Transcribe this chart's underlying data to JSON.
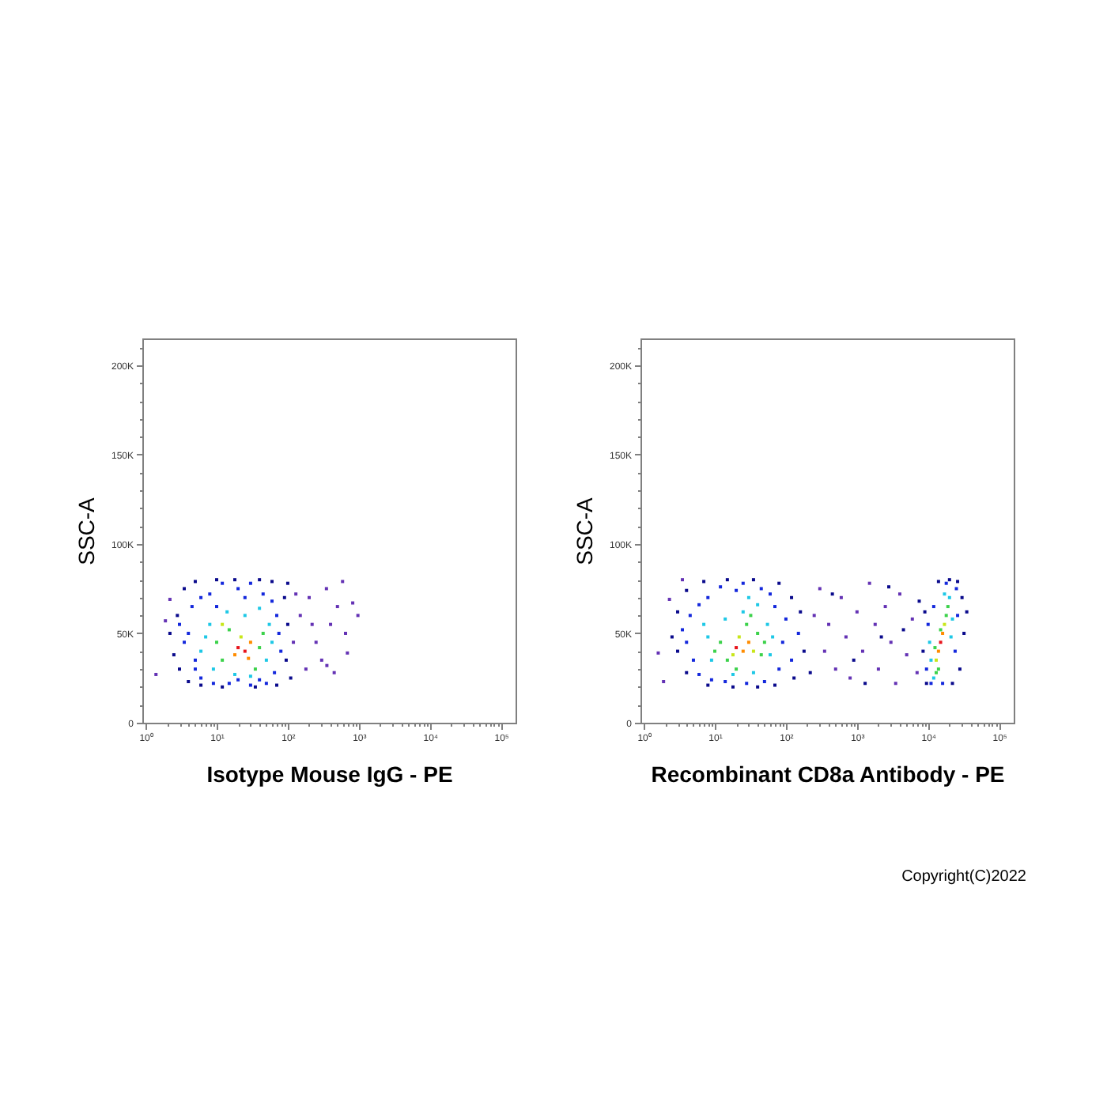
{
  "chart_data": [
    {
      "type": "scatter",
      "xlabel": "Isotype Mouse IgG - PE",
      "ylabel": "SSC-A",
      "log": "x",
      "marker": "square",
      "xlim": [
        0.9,
        160000
      ],
      "ylim": [
        0,
        215000
      ],
      "xticks": [
        {
          "value": 1,
          "label": "10⁰"
        },
        {
          "value": 2,
          "label": null
        },
        {
          "value": 3,
          "label": null
        },
        {
          "value": 4,
          "label": null
        },
        {
          "value": 5,
          "label": null
        },
        {
          "value": 6,
          "label": null
        },
        {
          "value": 7,
          "label": null
        },
        {
          "value": 8,
          "label": null
        },
        {
          "value": 9,
          "label": null
        },
        {
          "value": 10,
          "label": "10¹"
        },
        {
          "value": 20,
          "label": null
        },
        {
          "value": 30,
          "label": null
        },
        {
          "value": 40,
          "label": null
        },
        {
          "value": 50,
          "label": null
        },
        {
          "value": 60,
          "label": null
        },
        {
          "value": 70,
          "label": null
        },
        {
          "value": 80,
          "label": null
        },
        {
          "value": 90,
          "label": null
        },
        {
          "value": 100,
          "label": "10²"
        },
        {
          "value": 200,
          "label": null
        },
        {
          "value": 300,
          "label": null
        },
        {
          "value": 400,
          "label": null
        },
        {
          "value": 500,
          "label": null
        },
        {
          "value": 600,
          "label": null
        },
        {
          "value": 700,
          "label": null
        },
        {
          "value": 800,
          "label": null
        },
        {
          "value": 900,
          "label": null
        },
        {
          "value": 1000,
          "label": "10³"
        },
        {
          "value": 2000,
          "label": null
        },
        {
          "value": 3000,
          "label": null
        },
        {
          "value": 4000,
          "label": null
        },
        {
          "value": 5000,
          "label": null
        },
        {
          "value": 6000,
          "label": null
        },
        {
          "value": 7000,
          "label": null
        },
        {
          "value": 8000,
          "label": null
        },
        {
          "value": 9000,
          "label": null
        },
        {
          "value": 10000,
          "label": "10⁴"
        },
        {
          "value": 20000,
          "label": null
        },
        {
          "value": 30000,
          "label": null
        },
        {
          "value": 40000,
          "label": null
        },
        {
          "value": 50000,
          "label": null
        },
        {
          "value": 60000,
          "label": null
        },
        {
          "value": 70000,
          "label": null
        },
        {
          "value": 80000,
          "label": null
        },
        {
          "value": 90000,
          "label": null
        },
        {
          "value": 100000,
          "label": "10⁵"
        }
      ],
      "yticks": [
        0,
        {
          "value": 10000,
          "label": null
        },
        {
          "value": 20000,
          "label": null
        },
        {
          "value": 30000,
          "label": null
        },
        {
          "value": 40000,
          "label": null
        },
        {
          "value": 50000,
          "label": "50K"
        },
        {
          "value": 60000,
          "label": null
        },
        {
          "value": 70000,
          "label": null
        },
        {
          "value": 80000,
          "label": null
        },
        {
          "value": 90000,
          "label": null
        },
        {
          "value": 100000,
          "label": "100K"
        },
        {
          "value": 110000,
          "label": null
        },
        {
          "value": 120000,
          "label": null
        },
        {
          "value": 130000,
          "label": null
        },
        {
          "value": 140000,
          "label": null
        },
        {
          "value": 150000,
          "label": "150K"
        },
        {
          "value": 160000,
          "label": null
        },
        {
          "value": 170000,
          "label": null
        },
        {
          "value": 180000,
          "label": null
        },
        {
          "value": 190000,
          "label": null
        },
        {
          "value": 200000,
          "label": "200K"
        },
        {
          "value": 210000,
          "label": null
        }
      ],
      "series": [
        {
          "color": "#6432b4",
          "x": [
            150,
            200,
            250,
            300,
            400,
            500,
            690,
            355,
            820,
            970,
            590,
            120,
            180,
            350,
            450,
            650,
            1.4,
            1.9,
            2.2,
            130,
            220
          ],
          "values": [
            60000,
            70000,
            45000,
            35000,
            55000,
            65000,
            39000,
            32000,
            67000,
            60000,
            79000,
            45000,
            30000,
            75000,
            28000,
            50000,
            27000,
            57000,
            69000,
            72000,
            55000
          ]
        },
        {
          "color": "#0a0a8c",
          "x": [
            2.5,
            2.8,
            3.5,
            5,
            10,
            18,
            40,
            60,
            90,
            100,
            95,
            70,
            35,
            12,
            6,
            3,
            2.2,
            4,
            100,
            110
          ],
          "values": [
            38000,
            60000,
            75000,
            79000,
            80000,
            80000,
            80000,
            79000,
            70000,
            55000,
            35000,
            21000,
            20000,
            20000,
            21000,
            30000,
            50000,
            23000,
            78000,
            25000
          ]
        },
        {
          "color": "#1428dc",
          "x": [
            4,
            5,
            4.5,
            6,
            8,
            12,
            20,
            30,
            45,
            70,
            80,
            65,
            50,
            30,
            15,
            9,
            5,
            3.5,
            3,
            6,
            25,
            60,
            75,
            40,
            10,
            20
          ],
          "values": [
            50000,
            35000,
            65000,
            25000,
            72000,
            78000,
            75000,
            78000,
            72000,
            60000,
            40000,
            28000,
            22000,
            21000,
            22000,
            22000,
            30000,
            45000,
            55000,
            70000,
            70000,
            68000,
            50000,
            24000,
            65000,
            24000
          ]
        },
        {
          "color": "#1ec8e6",
          "x": [
            6,
            8,
            9,
            14,
            25,
            50,
            55,
            30,
            18,
            60,
            7,
            40
          ],
          "values": [
            40000,
            55000,
            30000,
            62000,
            60000,
            35000,
            55000,
            26000,
            27000,
            45000,
            48000,
            64000
          ]
        },
        {
          "color": "#3cd24b",
          "x": [
            10,
            12,
            15,
            40,
            45,
            35
          ],
          "values": [
            45000,
            35000,
            52000,
            42000,
            50000,
            30000
          ]
        },
        {
          "color": "#c8e619",
          "x": [
            22,
            12
          ],
          "values": [
            48000,
            55000
          ]
        },
        {
          "color": "#ff8c00",
          "x": [
            30,
            18,
            28
          ],
          "values": [
            45000,
            38000,
            36000
          ]
        },
        {
          "color": "#e8141c",
          "x": [
            20,
            25
          ],
          "values": [
            42000,
            40000
          ]
        }
      ]
    },
    {
      "type": "scatter",
      "xlabel": "Recombinant CD8a Antibody - PE",
      "ylabel": "SSC-A",
      "log": "x",
      "marker": "square",
      "xlim": [
        0.9,
        160000
      ],
      "ylim": [
        0,
        215000
      ],
      "xticks": [
        {
          "value": 1,
          "label": "10⁰"
        },
        {
          "value": 2,
          "label": null
        },
        {
          "value": 3,
          "label": null
        },
        {
          "value": 4,
          "label": null
        },
        {
          "value": 5,
          "label": null
        },
        {
          "value": 6,
          "label": null
        },
        {
          "value": 7,
          "label": null
        },
        {
          "value": 8,
          "label": null
        },
        {
          "value": 9,
          "label": null
        },
        {
          "value": 10,
          "label": "10¹"
        },
        {
          "value": 20,
          "label": null
        },
        {
          "value": 30,
          "label": null
        },
        {
          "value": 40,
          "label": null
        },
        {
          "value": 50,
          "label": null
        },
        {
          "value": 60,
          "label": null
        },
        {
          "value": 70,
          "label": null
        },
        {
          "value": 80,
          "label": null
        },
        {
          "value": 90,
          "label": null
        },
        {
          "value": 100,
          "label": "10²"
        },
        {
          "value": 200,
          "label": null
        },
        {
          "value": 300,
          "label": null
        },
        {
          "value": 400,
          "label": null
        },
        {
          "value": 500,
          "label": null
        },
        {
          "value": 600,
          "label": null
        },
        {
          "value": 700,
          "label": null
        },
        {
          "value": 800,
          "label": null
        },
        {
          "value": 900,
          "label": null
        },
        {
          "value": 1000,
          "label": "10³"
        },
        {
          "value": 2000,
          "label": null
        },
        {
          "value": 3000,
          "label": null
        },
        {
          "value": 4000,
          "label": null
        },
        {
          "value": 5000,
          "label": null
        },
        {
          "value": 6000,
          "label": null
        },
        {
          "value": 7000,
          "label": null
        },
        {
          "value": 8000,
          "label": null
        },
        {
          "value": 9000,
          "label": null
        },
        {
          "value": 10000,
          "label": "10⁴"
        },
        {
          "value": 20000,
          "label": null
        },
        {
          "value": 30000,
          "label": null
        },
        {
          "value": 40000,
          "label": null
        },
        {
          "value": 50000,
          "label": null
        },
        {
          "value": 60000,
          "label": null
        },
        {
          "value": 70000,
          "label": null
        },
        {
          "value": 80000,
          "label": null
        },
        {
          "value": 90000,
          "label": null
        },
        {
          "value": 100000,
          "label": "10⁵"
        }
      ],
      "yticks": [
        0,
        {
          "value": 10000,
          "label": null
        },
        {
          "value": 20000,
          "label": null
        },
        {
          "value": 30000,
          "label": null
        },
        {
          "value": 40000,
          "label": null
        },
        {
          "value": 50000,
          "label": "50K"
        },
        {
          "value": 60000,
          "label": null
        },
        {
          "value": 70000,
          "label": null
        },
        {
          "value": 80000,
          "label": null
        },
        {
          "value": 90000,
          "label": null
        },
        {
          "value": 100000,
          "label": "100K"
        },
        {
          "value": 110000,
          "label": null
        },
        {
          "value": 120000,
          "label": null
        },
        {
          "value": 130000,
          "label": null
        },
        {
          "value": 140000,
          "label": null
        },
        {
          "value": 150000,
          "label": "150K"
        },
        {
          "value": 160000,
          "label": null
        },
        {
          "value": 170000,
          "label": null
        },
        {
          "value": 180000,
          "label": null
        },
        {
          "value": 190000,
          "label": null
        },
        {
          "value": 200000,
          "label": "200K"
        },
        {
          "value": 210000,
          "label": null
        }
      ],
      "annotations": [
        "Copyright(C)2022"
      ],
      "series": [
        {
          "color": "#6432b4",
          "x": [
            1.6,
            1.9,
            3.5,
            2.3,
            250,
            300,
            350,
            400,
            500,
            600,
            700,
            800,
            1000,
            1200,
            1500,
            1800,
            2000,
            2500,
            3000,
            3500,
            4000,
            5000,
            6000,
            7000
          ],
          "values": [
            39000,
            23000,
            80000,
            69000,
            60000,
            75000,
            40000,
            55000,
            30000,
            70000,
            48000,
            25000,
            62000,
            40000,
            78000,
            55000,
            30000,
            65000,
            45000,
            22000,
            72000,
            38000,
            58000,
            28000
          ]
        },
        {
          "color": "#0a0a8c",
          "x": [
            3,
            3,
            4,
            7,
            15,
            35,
            80,
            120,
            160,
            180,
            130,
            70,
            40,
            18,
            8,
            4,
            2.5,
            450,
            900,
            1300,
            2200,
            4500,
            220,
            2800,
            7500,
            8500,
            9000,
            30000,
            32000,
            28000,
            22000,
            20000,
            9500,
            35000,
            14000,
            26000
          ],
          "values": [
            40000,
            62000,
            74000,
            79000,
            80000,
            80000,
            78000,
            70000,
            62000,
            40000,
            25000,
            21000,
            20000,
            20000,
            21000,
            28000,
            48000,
            72000,
            35000,
            22000,
            48000,
            52000,
            28000,
            76000,
            68000,
            40000,
            62000,
            70000,
            50000,
            30000,
            22000,
            80000,
            22000,
            62000,
            79000,
            79000
          ]
        },
        {
          "color": "#1428dc",
          "x": [
            4,
            5,
            4.5,
            6,
            8,
            12,
            20,
            45,
            70,
            90,
            80,
            50,
            28,
            14,
            9,
            3.5,
            6,
            100,
            120,
            25,
            60,
            150,
            10000,
            9500,
            25000,
            24000,
            11000,
            18000,
            26000,
            16000,
            12000
          ],
          "values": [
            45000,
            35000,
            60000,
            27000,
            70000,
            76000,
            74000,
            75000,
            65000,
            45000,
            30000,
            23000,
            22000,
            23000,
            24000,
            52000,
            66000,
            58000,
            35000,
            78000,
            72000,
            50000,
            55000,
            30000,
            75000,
            40000,
            22000,
            78000,
            60000,
            22000,
            65000
          ]
        },
        {
          "color": "#1ec8e6",
          "x": [
            8,
            9,
            14,
            25,
            55,
            60,
            35,
            18,
            40,
            7,
            30,
            65,
            11000,
            20000,
            12000,
            17000,
            22000,
            10500,
            21000
          ],
          "values": [
            48000,
            35000,
            58000,
            62000,
            55000,
            38000,
            28000,
            27000,
            66000,
            55000,
            70000,
            48000,
            35000,
            70000,
            25000,
            72000,
            58000,
            45000,
            48000
          ]
        },
        {
          "color": "#3cd24b",
          "x": [
            12,
            15,
            40,
            45,
            28,
            20,
            50,
            32,
            10,
            14000,
            18000,
            15000,
            12500,
            19000,
            13000
          ],
          "values": [
            45000,
            35000,
            50000,
            38000,
            55000,
            30000,
            45000,
            60000,
            40000,
            30000,
            60000,
            52000,
            42000,
            65000,
            28000
          ]
        },
        {
          "color": "#c8e619",
          "x": [
            18,
            35,
            22,
            17000,
            13000
          ],
          "values": [
            38000,
            40000,
            48000,
            55000,
            35000
          ]
        },
        {
          "color": "#ff8c00",
          "x": [
            25,
            30,
            16000,
            14000
          ],
          "values": [
            40000,
            45000,
            50000,
            40000
          ]
        },
        {
          "color": "#e8141c",
          "x": [
            20,
            15000
          ],
          "values": [
            42000,
            45000
          ]
        }
      ]
    }
  ]
}
